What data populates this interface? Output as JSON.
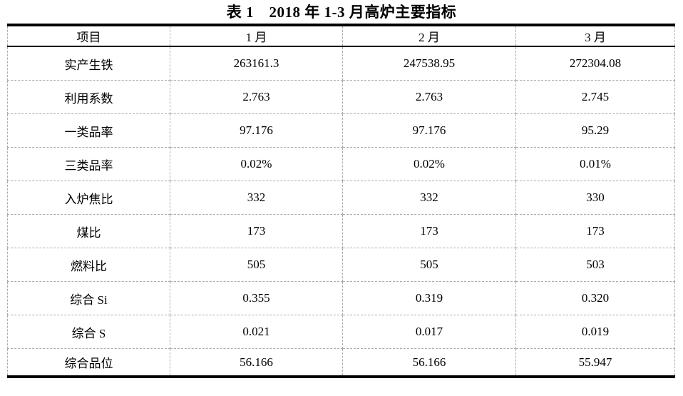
{
  "title": "表 1　2018 年 1-3 月高炉主要指标",
  "table": {
    "headers": {
      "item": "项目",
      "month1": "1 月",
      "month2": "2 月",
      "month3": "3 月"
    },
    "rows": [
      {
        "label": "实产生铁",
        "values": [
          "263161.3",
          "247538.95",
          "272304.08"
        ]
      },
      {
        "label": "利用系数",
        "values": [
          "2.763",
          "2.763",
          "2.745"
        ]
      },
      {
        "label": "一类品率",
        "values": [
          "97.176",
          "97.176",
          "95.29"
        ]
      },
      {
        "label": "三类品率",
        "values": [
          "0.02%",
          "0.02%",
          "0.01%"
        ]
      },
      {
        "label": "入炉焦比",
        "values": [
          "332",
          "332",
          "330"
        ]
      },
      {
        "label": "煤比",
        "values": [
          "173",
          "173",
          "173"
        ]
      },
      {
        "label": "燃料比",
        "values": [
          "505",
          "505",
          "503"
        ]
      },
      {
        "label": "综合 Si",
        "values": [
          "0.355",
          "0.319",
          "0.320"
        ]
      },
      {
        "label": "综合 S",
        "values": [
          "0.021",
          "0.017",
          "0.019"
        ]
      },
      {
        "label": "综合品位",
        "values": [
          "56.166",
          "56.166",
          "55.947"
        ]
      }
    ],
    "colors": {
      "outer_border": "#000000",
      "inner_grid": "#ababab",
      "text": "#000000",
      "background": "#ffffff"
    }
  }
}
